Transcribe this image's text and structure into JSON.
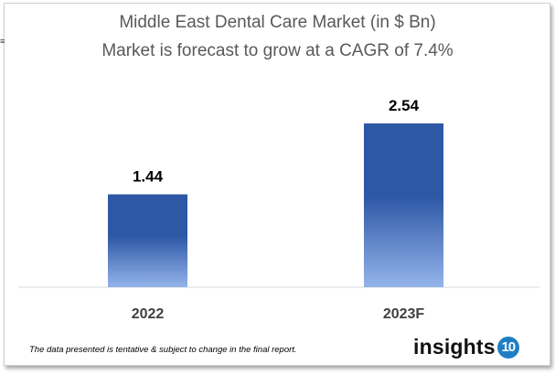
{
  "chart_data": {
    "type": "bar",
    "title": "Middle East Dental Care Market (in $ Bn)",
    "subtitle": "Market is forecast to grow at a CAGR of 7.4%",
    "categories": [
      "2022",
      "2023F"
    ],
    "values": [
      1.44,
      2.54
    ],
    "data_labels": [
      "1.44",
      "2.54"
    ],
    "xlabel": "",
    "ylabel": "",
    "ylim": [
      0,
      3.3
    ],
    "grid": false,
    "colors": {
      "bar_top": "#2E58A6",
      "bar_bottom": "#94B4EA"
    }
  },
  "footnote": "The data presented is tentative & subject to change in the final report.",
  "logo": {
    "text": "insights",
    "badge": "10"
  }
}
